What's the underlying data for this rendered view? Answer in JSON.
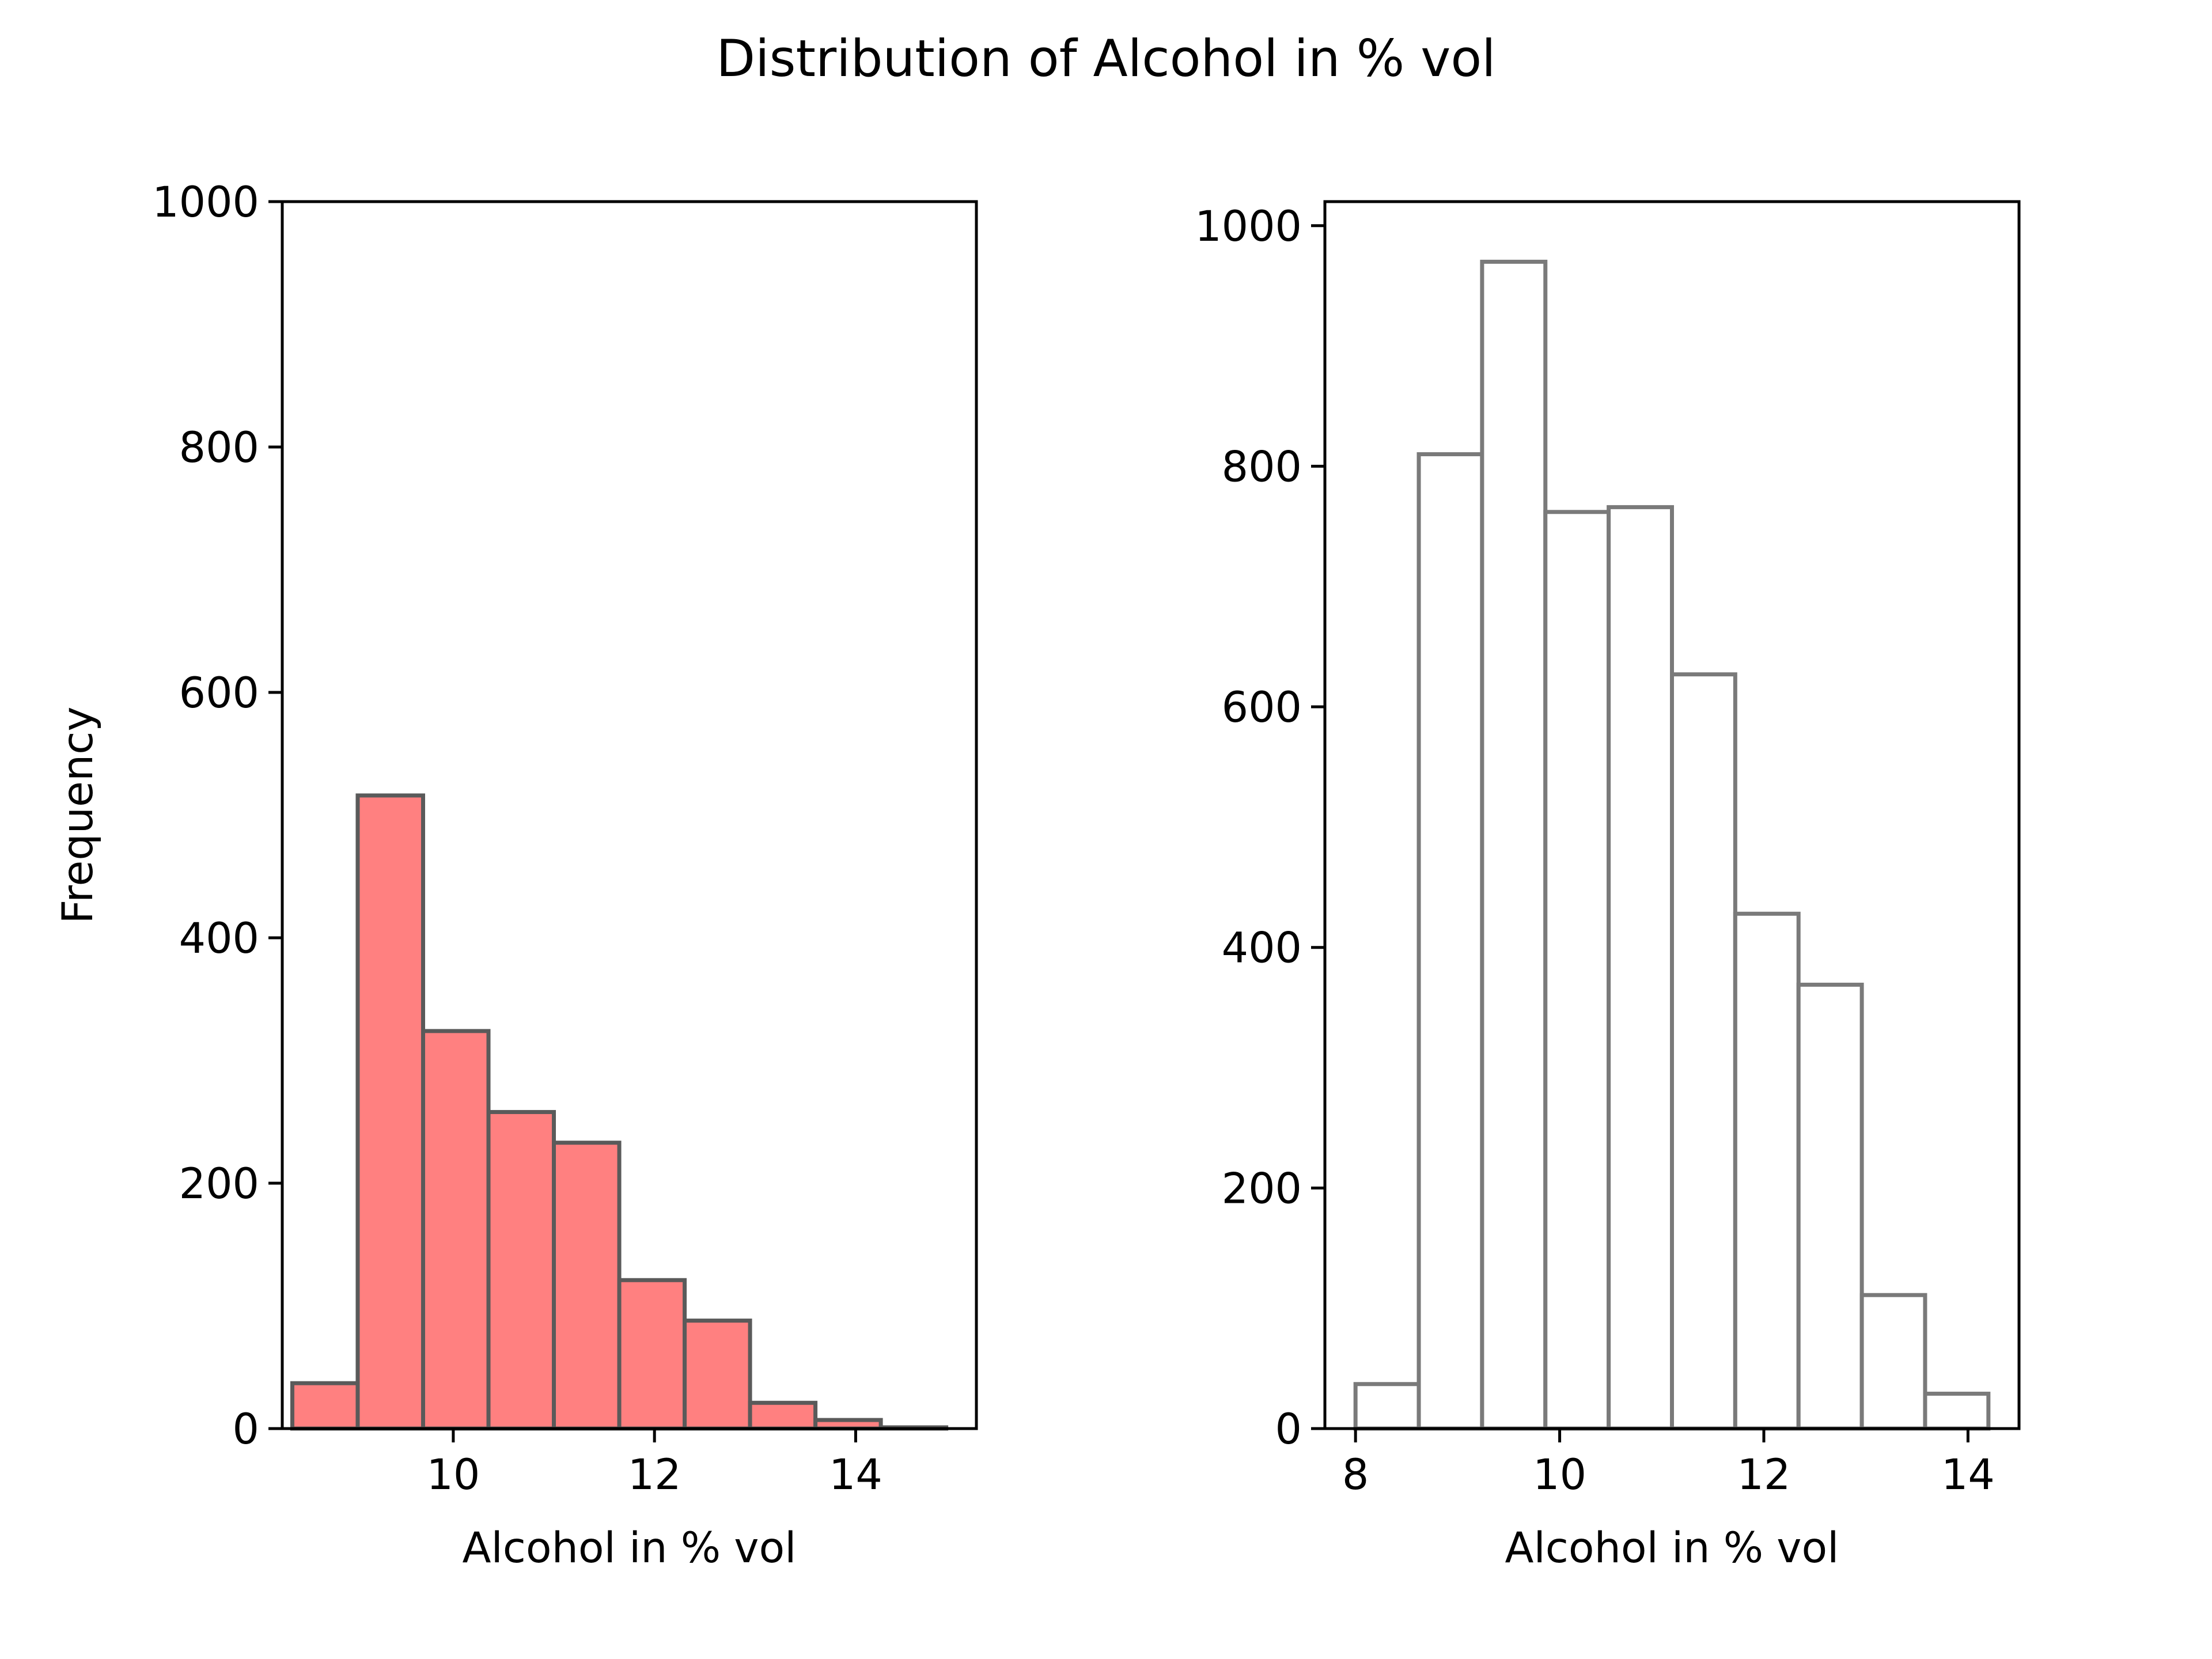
{
  "figure": {
    "title": "Distribution of Alcohol in % vol"
  },
  "chart_data": [
    {
      "type": "bar",
      "title": "",
      "xlabel": "Alcohol in % vol",
      "ylabel": "Frequency",
      "xlim": [
        8.3,
        15.2
      ],
      "ylim": [
        0,
        1000
      ],
      "xticks": [
        10,
        12,
        14
      ],
      "yticks": [
        0,
        200,
        400,
        600,
        800,
        1000
      ],
      "bin_edges": [
        8.4,
        9.05,
        9.7,
        10.35,
        11.0,
        11.65,
        12.3,
        12.95,
        13.6,
        14.25,
        14.9
      ],
      "values": [
        37,
        516,
        324,
        258,
        233,
        121,
        88,
        21,
        7,
        1
      ],
      "fill_color": "#ff8080",
      "edge_color": "#5a5a5a",
      "grid": false
    },
    {
      "type": "bar",
      "title": "",
      "xlabel": "Alcohol in % vol",
      "ylabel": "",
      "xlim": [
        7.7,
        14.5
      ],
      "ylim": [
        0,
        1020
      ],
      "xticks": [
        8,
        10,
        12,
        14
      ],
      "yticks": [
        0,
        200,
        400,
        600,
        800,
        1000
      ],
      "bin_edges": [
        8.0,
        8.62,
        9.24,
        9.86,
        10.48,
        11.1,
        11.72,
        12.34,
        12.96,
        13.58,
        14.2
      ],
      "values": [
        37,
        810,
        970,
        762,
        766,
        627,
        428,
        369,
        111,
        29
      ],
      "fill_color": "#ffffff",
      "edge_color": "#7a7a7a",
      "grid": false
    }
  ]
}
